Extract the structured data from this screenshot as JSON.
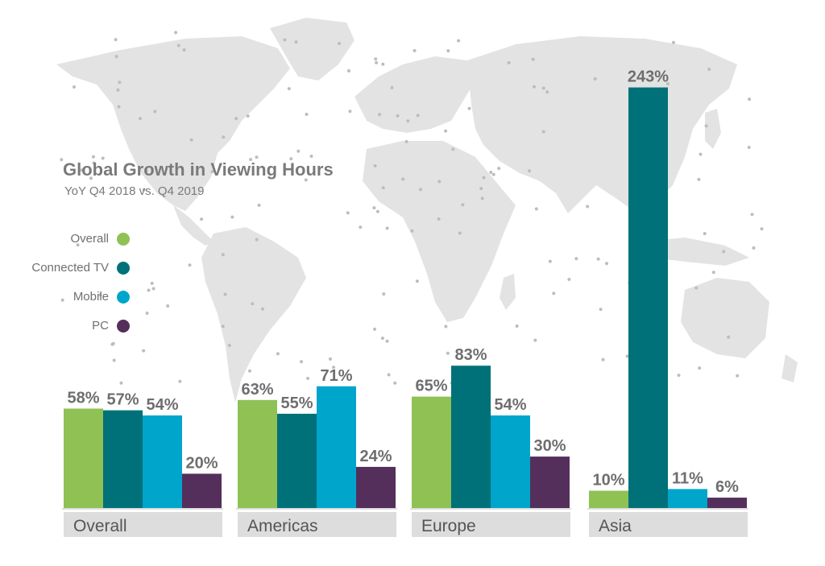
{
  "title": "Global Growth in Viewing Hours",
  "subtitle": "YoY Q4 2018 vs. Q4 2019",
  "colors": {
    "overall": "#8fc154",
    "connected_tv": "#007179",
    "mobile": "#00a5cc",
    "pc": "#542f5b",
    "map": "#e3e3e3",
    "map_dots": "#bdbdbd",
    "axis_text": "#555555",
    "category_box": "#dddddd",
    "value_text": "#6e6e6e"
  },
  "legend": [
    {
      "name": "Overall",
      "color": "#8fc154"
    },
    {
      "name": "Connected TV",
      "color": "#007179"
    },
    {
      "name": "Mobile",
      "color": "#00a5cc"
    },
    {
      "name": "PC",
      "color": "#542f5b"
    }
  ],
  "chart_data": {
    "type": "bar",
    "title": "Global Growth in Viewing Hours",
    "subtitle": "YoY Q4 2018 vs. Q4 2019",
    "categories": [
      "Overall",
      "Americas",
      "Europe",
      "Asia"
    ],
    "series": [
      {
        "name": "Overall",
        "values": [
          58,
          63,
          65,
          10
        ],
        "labels": [
          "58%",
          "63%",
          "65%",
          "10%"
        ]
      },
      {
        "name": "Connected TV",
        "values": [
          57,
          55,
          83,
          243
        ],
        "labels": [
          "57%",
          "55%",
          "83%",
          "243%"
        ]
      },
      {
        "name": "Mobile",
        "values": [
          54,
          71,
          54,
          11
        ],
        "labels": [
          "54%",
          "71%",
          "54%",
          "11%"
        ]
      },
      {
        "name": "PC",
        "values": [
          20,
          24,
          30,
          6
        ],
        "labels": [
          "20%",
          "24%",
          "30%",
          "6%"
        ]
      }
    ],
    "unit": "%",
    "legend_position": "left",
    "grid": false
  }
}
